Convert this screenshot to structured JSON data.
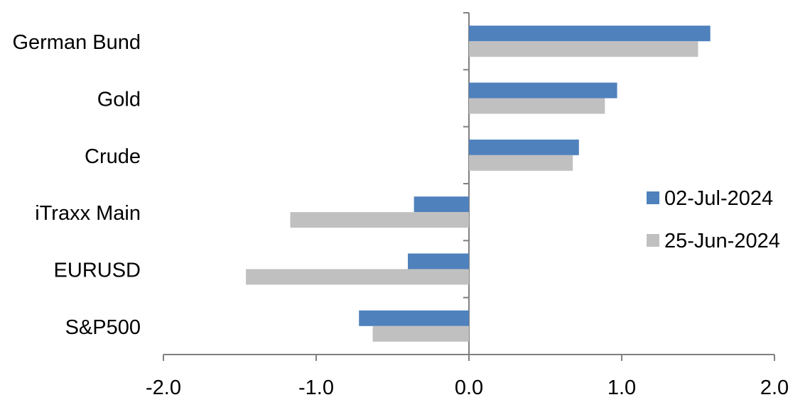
{
  "chart_data": {
    "type": "bar",
    "orientation": "horizontal",
    "categories": [
      "German Bund",
      "Gold",
      "Crude",
      "iTraxx Main",
      "EURUSD",
      "S&P500"
    ],
    "series": [
      {
        "name": "02-Jul-2024",
        "color": "#4f81bd",
        "values": [
          1.58,
          0.97,
          0.72,
          -0.36,
          -0.4,
          -0.72
        ]
      },
      {
        "name": "25-Jun-2024",
        "color": "#c0c0c0",
        "values": [
          1.5,
          0.89,
          0.68,
          -1.17,
          -1.46,
          -0.63
        ]
      }
    ],
    "xlim": [
      -2,
      2
    ],
    "xticks": [
      "-2.0",
      "-1.0",
      "0.0",
      "1.0",
      "2.0"
    ],
    "grid": false,
    "legend": "right"
  }
}
